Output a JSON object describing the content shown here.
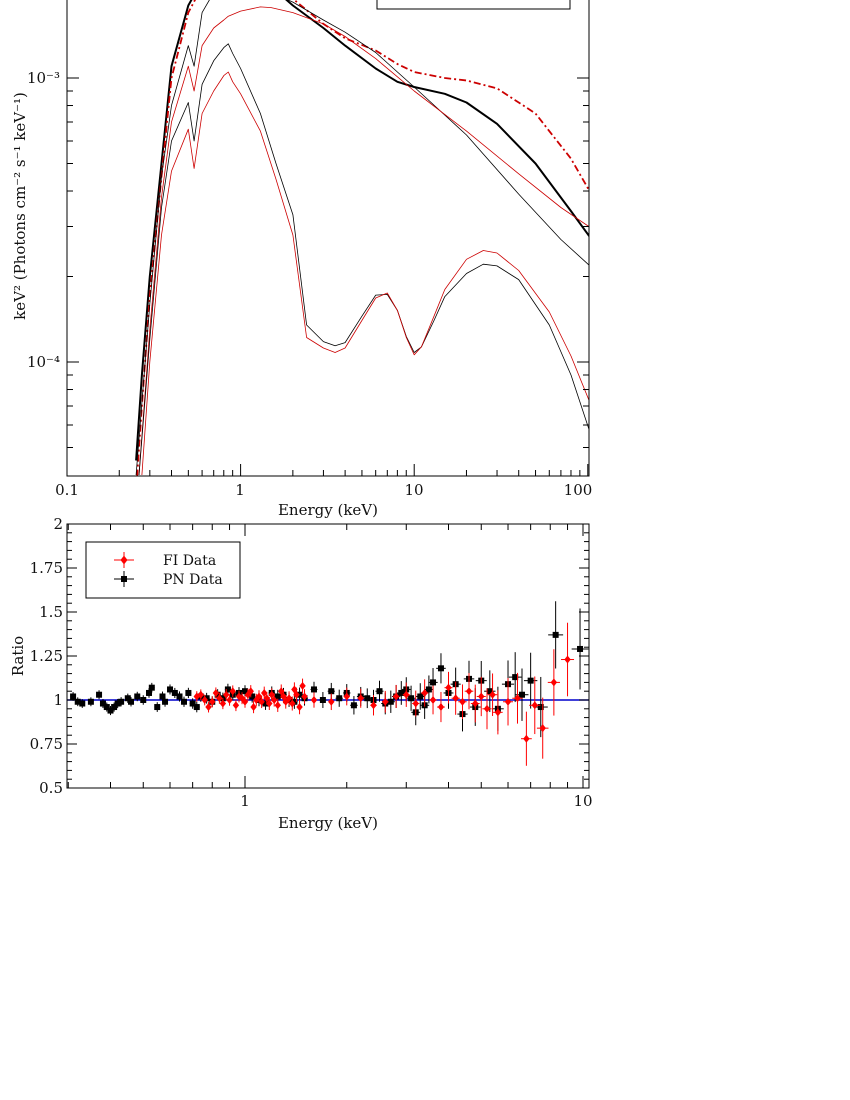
{
  "chart_data": [
    {
      "type": "line",
      "xlabel": "Energy (keV)",
      "ylabel": "keV² (Photons cm⁻² s⁻¹ keV⁻¹)",
      "xscale": "log",
      "yscale": "log",
      "xlim": [
        0.1,
        110
      ],
      "ylim": [
        4.5e-05,
        0.0021
      ],
      "x_ticks": [
        "0.1",
        "1",
        "10",
        "100"
      ],
      "y_ticks": [
        "10⁻⁴",
        "10⁻³"
      ],
      "series": [
        {
          "color": "#000000",
          "style": "solid-thick",
          "x": [
            0.25,
            0.27,
            0.3,
            0.35,
            0.4,
            0.5,
            0.6,
            0.8,
            1,
            1.5,
            2,
            3,
            4,
            6,
            8,
            10,
            15,
            20,
            30,
            50,
            80,
            110
          ],
          "y": [
            4.5e-05,
            9e-05,
            0.0002,
            0.0005,
            0.0011,
            0.0018,
            0.0022,
            0.0026,
            0.0025,
            0.0021,
            0.0018,
            0.0015,
            0.0013,
            0.00108,
            0.00097,
            0.00093,
            0.00088,
            0.00082,
            0.00069,
            0.0005,
            0.00034,
            0.00026
          ]
        },
        {
          "color": "#cc0000",
          "style": "dash-dot",
          "x": [
            0.25,
            0.27,
            0.3,
            0.35,
            0.4,
            0.5,
            0.6,
            0.8,
            1,
            1.5,
            2,
            3,
            4,
            6,
            8,
            10,
            15,
            20,
            30,
            50,
            80,
            110
          ],
          "y": [
            3.5e-05,
            7e-05,
            0.00017,
            0.00045,
            0.001,
            0.0017,
            0.0021,
            0.0025,
            0.0025,
            0.0021,
            0.0019,
            0.00155,
            0.00138,
            0.00125,
            0.00112,
            0.00105,
            0.001,
            0.00098,
            0.00092,
            0.00075,
            0.00052,
            0.00037
          ]
        },
        {
          "color": "#000000",
          "style": "thin",
          "x": [
            0.25,
            0.3,
            0.35,
            0.4,
            0.5,
            0.54,
            0.6,
            0.7,
            0.8,
            0.85,
            1,
            1.5,
            2,
            3,
            4,
            6,
            8,
            10,
            20,
            40,
            70,
            110
          ],
          "y": [
            4e-05,
            0.00016,
            0.00045,
            0.0008,
            0.0013,
            0.0011,
            0.0017,
            0.002,
            0.0022,
            0.0023,
            0.0022,
            0.002,
            0.00185,
            0.0016,
            0.00145,
            0.00123,
            0.00105,
            0.00093,
            0.00063,
            0.00039,
            0.00027,
            0.00021
          ]
        },
        {
          "color": "#cc0000",
          "style": "thin",
          "x": [
            0.26,
            0.3,
            0.35,
            0.4,
            0.5,
            0.54,
            0.6,
            0.7,
            0.8,
            0.85,
            1,
            1.3,
            1.5,
            2,
            3,
            4,
            6,
            8,
            10,
            20,
            40,
            70,
            110
          ],
          "y": [
            4e-05,
            0.00013,
            0.00038,
            0.0007,
            0.0011,
            0.0009,
            0.0013,
            0.0015,
            0.0016,
            0.00165,
            0.00172,
            0.00178,
            0.00177,
            0.0017,
            0.00155,
            0.0014,
            0.00117,
            0.00101,
            0.0009,
            0.00065,
            0.00046,
            0.00035,
            0.00029
          ]
        },
        {
          "color": "#000000",
          "style": "thin",
          "x": [
            0.26,
            0.3,
            0.35,
            0.4,
            0.5,
            0.54,
            0.6,
            0.7,
            0.8,
            0.85,
            0.9,
            1.0,
            1.3,
            1.6,
            2,
            2.4,
            3,
            3.5,
            4,
            5,
            6,
            7,
            8,
            9,
            10,
            11,
            13,
            15,
            20,
            25,
            30,
            40,
            60,
            80,
            110
          ],
          "y": [
            4e-05,
            0.00012,
            0.00035,
            0.0006,
            0.00082,
            0.0006,
            0.00095,
            0.00115,
            0.00128,
            0.00132,
            0.00122,
            0.00108,
            0.00075,
            0.0005,
            0.00033,
            0.000135,
            0.000118,
            0.000114,
            0.000117,
            0.000145,
            0.000172,
            0.000173,
            0.000152,
            0.000123,
            0.000108,
            0.000113,
            0.00014,
            0.00017,
            0.000205,
            0.000221,
            0.000218,
            0.000195,
            0.000135,
            9e-05,
            5e-05
          ]
        },
        {
          "color": "#cc0000",
          "style": "thin",
          "x": [
            0.27,
            0.3,
            0.35,
            0.4,
            0.5,
            0.54,
            0.6,
            0.7,
            0.8,
            0.85,
            0.9,
            1.0,
            1.3,
            1.6,
            2,
            2.4,
            3,
            3.5,
            4,
            5,
            6,
            7,
            8,
            9,
            10,
            11,
            13,
            15,
            20,
            25,
            30,
            40,
            60,
            80,
            110
          ],
          "y": [
            4e-05,
            0.0001,
            0.00028,
            0.00047,
            0.00066,
            0.00048,
            0.00075,
            0.0009,
            0.00102,
            0.00105,
            0.00097,
            0.00088,
            0.00065,
            0.00044,
            0.00028,
            0.000122,
            0.000112,
            0.000108,
            0.000112,
            0.00014,
            0.000168,
            0.000175,
            0.000152,
            0.000122,
            0.000106,
            0.000113,
            0.000145,
            0.00018,
            0.00023,
            0.000247,
            0.000242,
            0.00021,
            0.00015,
            0.000105,
            6.5e-05
          ]
        }
      ]
    },
    {
      "type": "scatter",
      "xlabel": "Energy (keV)",
      "ylabel": "Ratio",
      "xscale": "log",
      "xlim": [
        0.3,
        10.2
      ],
      "ylim": [
        0.5,
        2.0
      ],
      "x_ticks": [
        "1",
        "10"
      ],
      "y_ticks": [
        "0.5",
        "0.75",
        "1",
        "1.25",
        "1.5",
        "1.75",
        "2"
      ],
      "reference_line": 1.0,
      "legend": {
        "placement": "top-left",
        "entries": [
          "FI Data",
          "PN Data"
        ]
      },
      "series": [
        {
          "name": "PN Data",
          "color": "#000000",
          "marker": "square",
          "x": [
            0.31,
            0.32,
            0.33,
            0.35,
            0.37,
            0.38,
            0.39,
            0.4,
            0.41,
            0.42,
            0.43,
            0.45,
            0.46,
            0.48,
            0.5,
            0.52,
            0.53,
            0.55,
            0.57,
            0.58,
            0.6,
            0.62,
            0.64,
            0.66,
            0.68,
            0.7,
            0.72,
            0.74,
            0.77,
            0.8,
            0.83,
            0.86,
            0.89,
            0.92,
            0.96,
            1.0,
            1.05,
            1.1,
            1.15,
            1.2,
            1.25,
            1.3,
            1.35,
            1.4,
            1.45,
            1.5,
            1.6,
            1.7,
            1.8,
            1.9,
            2.0,
            2.1,
            2.2,
            2.3,
            2.4,
            2.5,
            2.6,
            2.7,
            2.8,
            2.9,
            3.0,
            3.1,
            3.2,
            3.3,
            3.4,
            3.5,
            3.6,
            3.8,
            4.0,
            4.2,
            4.4,
            4.6,
            4.8,
            5.0,
            5.3,
            5.6,
            6.0,
            6.3,
            6.6,
            7.0,
            7.5,
            8.3,
            9.8
          ],
          "y": [
            1.02,
            0.99,
            0.98,
            0.99,
            1.03,
            0.98,
            0.96,
            0.94,
            0.96,
            0.98,
            0.99,
            1.01,
            0.99,
            1.02,
            1.0,
            1.04,
            1.07,
            0.96,
            1.02,
            0.99,
            1.06,
            1.04,
            1.02,
            0.99,
            1.04,
            0.98,
            0.96,
            1.02,
            1.01,
            0.99,
            1.03,
            1.01,
            1.06,
            1.03,
            1.04,
            1.05,
            1.02,
            1.0,
            0.98,
            1.04,
            1.02,
            1.03,
            1.0,
            0.99,
            1.03,
            1.01,
            1.06,
            1.0,
            1.05,
            1.01,
            1.04,
            0.97,
            1.02,
            1.01,
            1.0,
            1.05,
            0.98,
            0.99,
            1.02,
            1.04,
            1.06,
            1.01,
            0.93,
            1.02,
            0.97,
            1.06,
            1.1,
            1.18,
            1.04,
            1.09,
            0.92,
            1.12,
            0.96,
            1.11,
            1.05,
            0.95,
            1.09,
            1.13,
            1.03,
            1.11,
            0.96,
            1.37,
            1.29
          ]
        },
        {
          "name": "FI Data",
          "color": "#ff0000",
          "marker": "diamond",
          "x": [
            0.72,
            0.74,
            0.76,
            0.78,
            0.8,
            0.82,
            0.84,
            0.86,
            0.88,
            0.9,
            0.92,
            0.94,
            0.96,
            0.98,
            1.0,
            1.02,
            1.04,
            1.06,
            1.08,
            1.1,
            1.12,
            1.14,
            1.16,
            1.18,
            1.2,
            1.22,
            1.25,
            1.28,
            1.3,
            1.32,
            1.35,
            1.38,
            1.4,
            1.42,
            1.45,
            1.48,
            1.5,
            1.6,
            1.8,
            2.0,
            2.2,
            2.4,
            2.6,
            2.8,
            3.0,
            3.2,
            3.4,
            3.6,
            3.8,
            4.0,
            4.2,
            4.4,
            4.6,
            4.8,
            5.0,
            5.2,
            5.4,
            5.6,
            6.0,
            6.4,
            6.8,
            7.2,
            7.6,
            8.2,
            9.0
          ],
          "y": [
            1.02,
            1.03,
            1.0,
            0.96,
            0.99,
            1.04,
            1.01,
            0.98,
            1.03,
            1.0,
            1.05,
            0.97,
            1.02,
            1.01,
            0.99,
            1.03,
            1.05,
            0.96,
            1.0,
            1.02,
            0.99,
            1.04,
            1.01,
            0.98,
            1.03,
            1.0,
            0.97,
            1.05,
            1.02,
            0.99,
            1.01,
            0.98,
            1.06,
            1.03,
            0.96,
            1.08,
            1.02,
            1.0,
            0.99,
            1.02,
            1.01,
            0.97,
            0.99,
            1.02,
            1.03,
            0.98,
            1.04,
            1.0,
            0.96,
            1.07,
            1.01,
            0.99,
            1.05,
            0.98,
            1.02,
            0.95,
            1.03,
            0.93,
            0.99,
            1.01,
            0.78,
            0.97,
            0.84,
            1.1,
            1.23
          ]
        }
      ]
    }
  ]
}
